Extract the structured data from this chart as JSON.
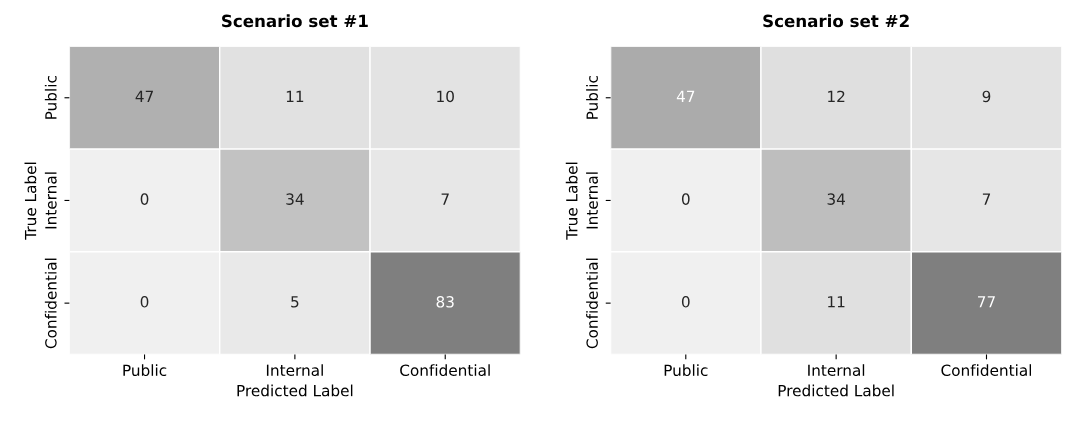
{
  "chart_data": [
    {
      "type": "heatmap",
      "title": "Scenario set #1",
      "xlabel": "Predicted Label",
      "ylabel": "True Label",
      "categories": [
        "Public",
        "Internal",
        "Confidential"
      ],
      "y_categories": [
        "Public",
        "Internal",
        "Confidential"
      ],
      "cells": [
        [
          47,
          11,
          10
        ],
        [
          0,
          34,
          7
        ],
        [
          0,
          5,
          83
        ]
      ],
      "data_labels": true
    },
    {
      "type": "heatmap",
      "title": "Scenario set #2",
      "xlabel": "Predicted Label",
      "ylabel": "True Label",
      "categories": [
        "Public",
        "Internal",
        "Confidential"
      ],
      "y_categories": [
        "Public",
        "Internal",
        "Confidential"
      ],
      "cells": [
        [
          47,
          12,
          9
        ],
        [
          0,
          34,
          7
        ],
        [
          0,
          11,
          77
        ]
      ],
      "data_labels": true
    }
  ]
}
